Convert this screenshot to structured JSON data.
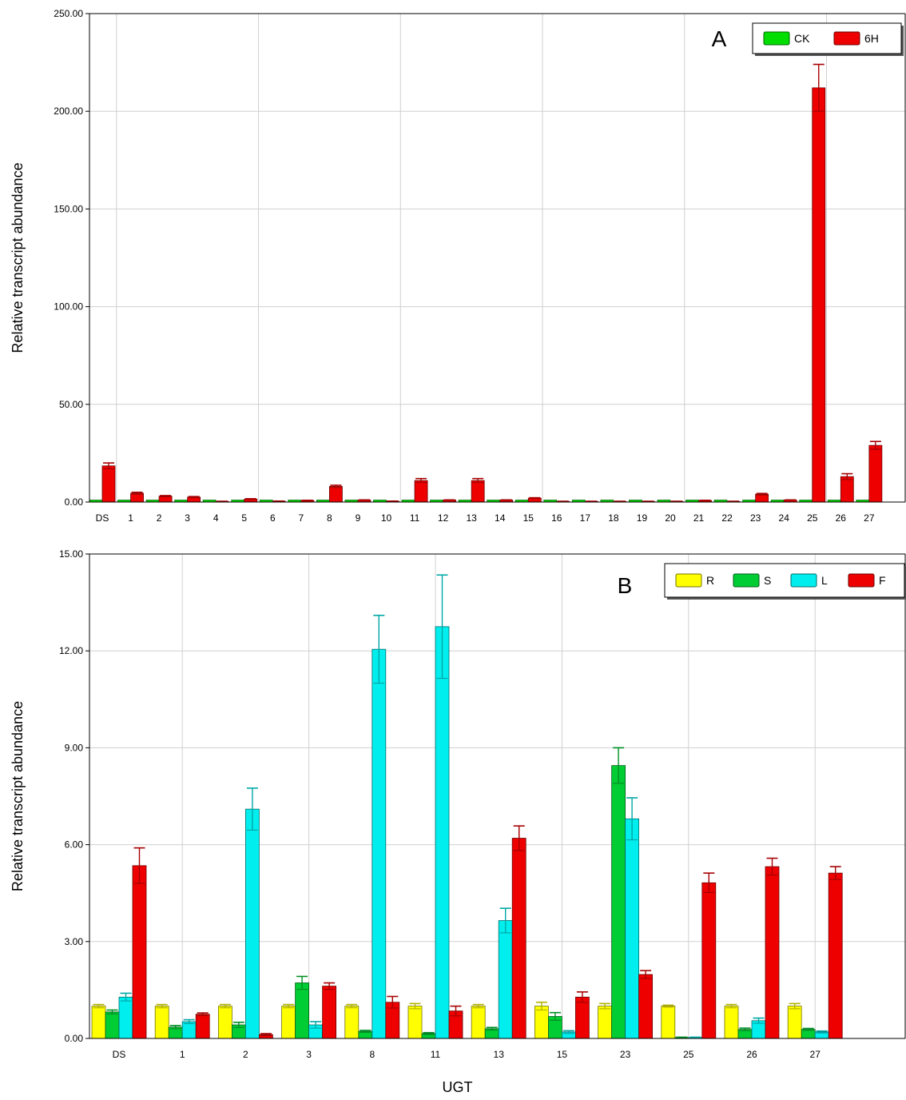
{
  "charts": [
    {
      "id": "A",
      "type": "bar",
      "panel_label": "A",
      "ylabel": "Relative transcript abundance",
      "ylim": [
        0,
        250
      ],
      "yticks": [
        "0.00",
        "50.00",
        "100.00",
        "150.00",
        "200.00",
        "250.00"
      ],
      "grid": true,
      "legend_position": "top-right",
      "categories": [
        "DS",
        "1",
        "2",
        "3",
        "4",
        "5",
        "6",
        "7",
        "8",
        "9",
        "10",
        "11",
        "12",
        "13",
        "14",
        "15",
        "16",
        "17",
        "18",
        "19",
        "20",
        "21",
        "22",
        "23",
        "24",
        "25",
        "26",
        "27"
      ],
      "series": [
        {
          "name": "CK",
          "color": "#00dd00",
          "values": [
            1,
            1,
            1,
            1,
            1,
            1,
            1,
            1,
            1,
            1,
            1,
            1,
            1,
            1,
            1,
            1,
            1,
            1,
            1,
            1,
            1,
            1,
            1,
            1,
            1,
            1,
            1,
            1
          ],
          "errors": [
            0,
            0,
            0,
            0,
            0,
            0,
            0,
            0,
            0,
            0,
            0,
            0,
            0,
            0,
            0,
            0,
            0,
            0,
            0,
            0,
            0,
            0,
            0,
            0,
            0,
            0,
            0,
            0
          ]
        },
        {
          "name": "6H",
          "color": "#ee0000",
          "values": [
            18.5,
            4.5,
            3,
            2.5,
            0.3,
            1.5,
            0.4,
            0.8,
            8,
            1,
            0.4,
            11,
            1,
            11,
            1,
            2,
            0.3,
            0.3,
            0.3,
            0.3,
            0.3,
            0.8,
            0.3,
            4,
            1,
            212,
            13,
            29
          ],
          "errors": [
            1.5,
            0.5,
            0.3,
            0.3,
            0.1,
            0.2,
            0.1,
            0.1,
            0.6,
            0.1,
            0.1,
            1,
            0.1,
            1,
            0.1,
            0.2,
            0.1,
            0.1,
            0.1,
            0.1,
            0.1,
            0.1,
            0.1,
            0.4,
            0.1,
            12,
            1.5,
            2
          ]
        }
      ]
    },
    {
      "id": "B",
      "type": "bar",
      "panel_label": "B",
      "xlabel": "UGT",
      "ylabel": "Relative transcript abundance",
      "ylim": [
        0,
        15
      ],
      "yticks": [
        "0.00",
        "3.00",
        "6.00",
        "9.00",
        "12.00",
        "15.00"
      ],
      "grid": true,
      "legend_position": "top-right",
      "categories": [
        "DS",
        "1",
        "2",
        "3",
        "8",
        "11",
        "13",
        "15",
        "23",
        "25",
        "26",
        "27"
      ],
      "series": [
        {
          "name": "R",
          "color": "#ffff00",
          "values": [
            1.0,
            1.0,
            1.0,
            1.0,
            1.0,
            1.0,
            1.0,
            1.0,
            1.0,
            1.0,
            1.0,
            1.0
          ],
          "errors": [
            0.05,
            0.05,
            0.05,
            0.05,
            0.05,
            0.08,
            0.05,
            0.12,
            0.08,
            0.03,
            0.05,
            0.08
          ]
        },
        {
          "name": "S",
          "color": "#00cc33",
          "values": [
            0.82,
            0.35,
            0.42,
            1.72,
            0.22,
            0.15,
            0.3,
            0.68,
            8.45,
            0.03,
            0.28,
            0.28
          ],
          "errors": [
            0.06,
            0.05,
            0.08,
            0.2,
            0.03,
            0.03,
            0.04,
            0.12,
            0.55,
            0.01,
            0.04,
            0.03
          ]
        },
        {
          "name": "L",
          "color": "#00eeee",
          "values": [
            1.28,
            0.52,
            7.1,
            0.42,
            12.05,
            12.75,
            3.65,
            0.2,
            6.8,
            0.03,
            0.55,
            0.2
          ],
          "errors": [
            0.12,
            0.06,
            0.65,
            0.1,
            1.05,
            1.6,
            0.38,
            0.04,
            0.65,
            0.01,
            0.08,
            0.03
          ]
        },
        {
          "name": "F",
          "color": "#ee0000",
          "values": [
            5.35,
            0.75,
            0.12,
            1.62,
            1.12,
            0.85,
            6.2,
            1.28,
            1.98,
            4.82,
            5.32,
            5.12
          ],
          "errors": [
            0.55,
            0.04,
            0.03,
            0.1,
            0.18,
            0.15,
            0.38,
            0.16,
            0.12,
            0.3,
            0.26,
            0.2
          ]
        }
      ]
    }
  ]
}
